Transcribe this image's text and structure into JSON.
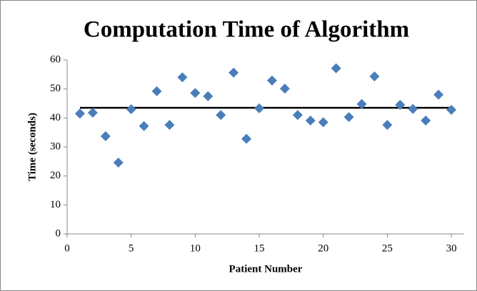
{
  "chart_data": {
    "type": "scatter",
    "title": "Computation Time of Algorithm",
    "x_label": "Patient Number",
    "y_label": "Time (seconds)",
    "x": [
      1,
      2,
      3,
      4,
      5,
      6,
      7,
      8,
      9,
      10,
      11,
      12,
      13,
      14,
      15,
      16,
      17,
      18,
      19,
      20,
      21,
      22,
      23,
      24,
      25,
      26,
      27,
      28,
      29,
      30
    ],
    "values": [
      41.5,
      41.8,
      33.7,
      24.6,
      43,
      37.2,
      49.2,
      37.6,
      54,
      48.6,
      47.5,
      41,
      55.6,
      32.8,
      43.3,
      52.9,
      50.1,
      41,
      39.1,
      38.5,
      57.1,
      40.3,
      44.8,
      54.3,
      37.6,
      44.5,
      43.1,
      39.1,
      48,
      42.8
    ],
    "color": "#4a7ebb",
    "mean_line": {
      "x": [
        1,
        30
      ],
      "values": [
        43.5,
        43.5
      ],
      "color": "#000000"
    },
    "xlim": [
      0,
      31
    ],
    "xticks": [
      0,
      5,
      10,
      15,
      20,
      25,
      30
    ],
    "ylim": [
      0,
      60
    ],
    "yticks": [
      0,
      10,
      20,
      30,
      40,
      50,
      60
    ],
    "grid": false
  }
}
